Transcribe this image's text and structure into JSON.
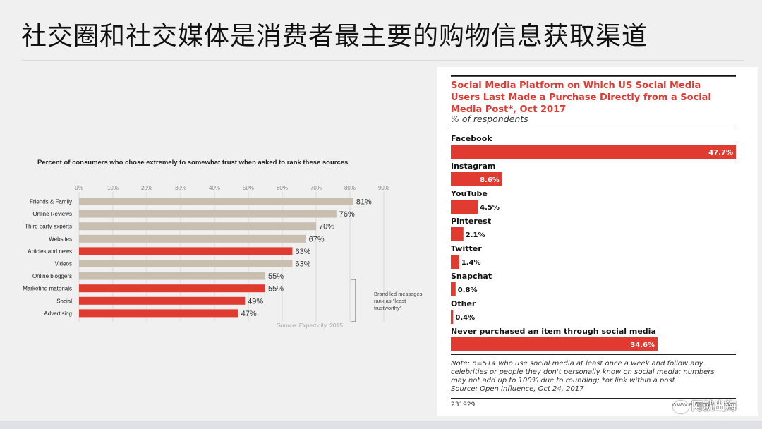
{
  "page": {
    "title": "社交圈和社交媒体是消费者最主要的购物信息获取渠道",
    "watermark": "阿就出海"
  },
  "chart_data": [
    {
      "type": "bar",
      "orientation": "horizontal",
      "title": "Percent of consumers who chose extremely to somewhat trust when asked to rank these sources",
      "categories": [
        "Friends & Family",
        "Online Reviews",
        "Third party experts",
        "Websites",
        "Articles and news",
        "Videos",
        "Online bloggers",
        "Marketing materials",
        "Social",
        "Advertising"
      ],
      "values": [
        81,
        76,
        70,
        67,
        63,
        63,
        55,
        55,
        49,
        47
      ],
      "value_labels": [
        "81%",
        "76%",
        "70%",
        "67%",
        "63%",
        "63%",
        "55%",
        "55%",
        "49%",
        "47%"
      ],
      "highlighted": [
        false,
        false,
        false,
        false,
        true,
        false,
        false,
        true,
        true,
        true
      ],
      "colors": {
        "default": "#c8bfb0",
        "highlight": "#e03a31"
      },
      "xlim": [
        0,
        90
      ],
      "xticks": [
        "0%",
        "10%",
        "20%",
        "30%",
        "40%",
        "50%",
        "60%",
        "70%",
        "80%",
        "90%"
      ],
      "annotation": [
        "Brand led messages",
        "rank as \"least",
        "trustworthy\""
      ],
      "source": "Source: Experticity, 2015"
    },
    {
      "type": "bar",
      "orientation": "horizontal",
      "title": [
        "Social Media Platform on Which US Social Media",
        "Users Last Made a Purchase Directly from a Social",
        "Media Post*, Oct 2017"
      ],
      "subtitle": "% of respondents",
      "categories": [
        "Facebook",
        "Instagram",
        "YouTube",
        "Pinterest",
        "Twitter",
        "Snapchat",
        "Other",
        "Never purchased an item through social media"
      ],
      "values": [
        47.7,
        8.6,
        4.5,
        2.1,
        1.4,
        0.8,
        0.4,
        34.6
      ],
      "value_labels": [
        "47.7%",
        "8.6%",
        "4.5%",
        "2.1%",
        "1.4%",
        "0.8%",
        "0.4%",
        "34.6%"
      ],
      "colors": {
        "bar": "#e03a31",
        "title": "#e03a31"
      },
      "xlim": [
        0,
        47.7
      ],
      "note": [
        "Note: n=514 who use social media at least once a week and follow any",
        "celebrities or people they don't personally know on social media; numbers",
        "may not add up to 100% due to rounding; *or link within a post",
        "Source: Open Influence, Oct 24, 2017"
      ],
      "id_number": "231929",
      "brand": "www.eMarketer.com"
    }
  ]
}
